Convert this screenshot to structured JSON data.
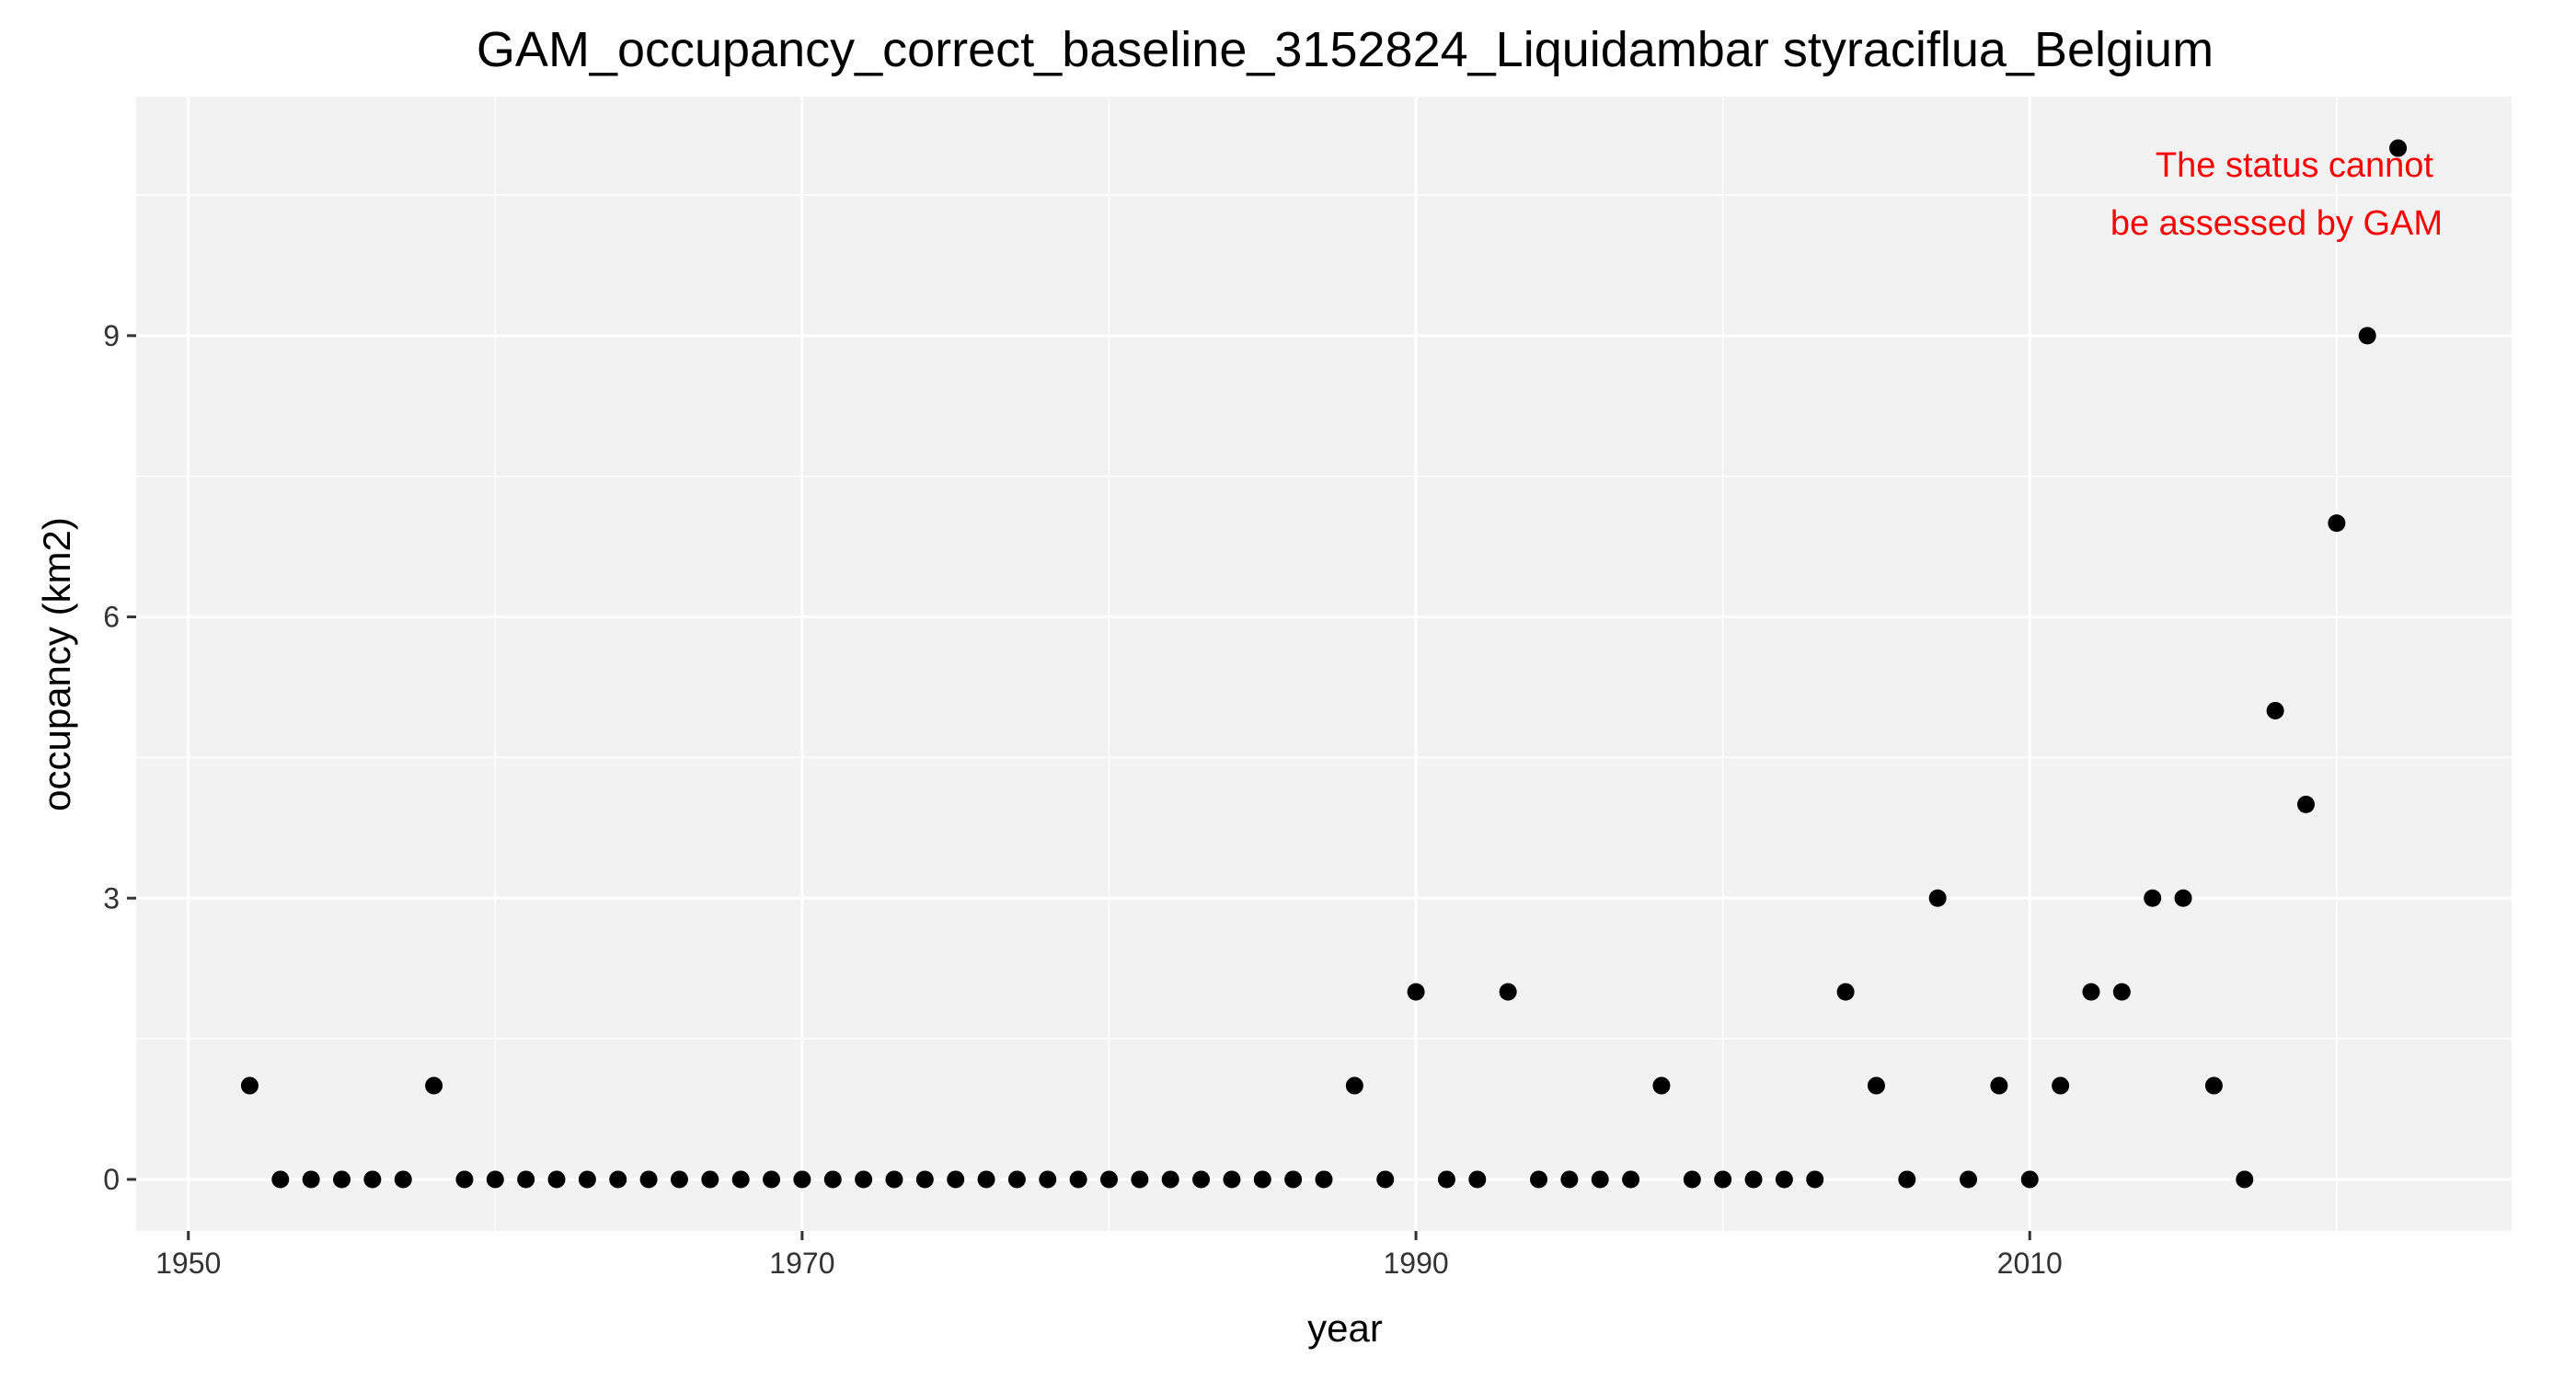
{
  "chart_data": {
    "type": "scatter",
    "title": "GAM_occupancy_correct_baseline_3152824_Liquidambar styraciflua_Belgium",
    "xlabel": "year",
    "ylabel": "occupancy (km2)",
    "xlim": [
      1948.3,
      2025.7
    ],
    "ylim": [
      -0.55,
      11.55
    ],
    "x_ticks": [
      1950,
      1970,
      1990,
      2010
    ],
    "y_ticks": [
      0,
      3,
      6,
      9
    ],
    "x_tick_labels": [
      "1950",
      "1970",
      "1990",
      "2010"
    ],
    "y_tick_labels": [
      "0",
      "3",
      "6",
      "9"
    ],
    "grid": true,
    "panel_background": "#f2f2f2",
    "point_color": "#000000",
    "annotation": {
      "line1": "The status cannot",
      "line2": "be assessed by GAM",
      "color": "#ff0000"
    },
    "x": [
      1952,
      1953,
      1954,
      1955,
      1956,
      1957,
      1958,
      1959,
      1960,
      1961,
      1962,
      1963,
      1964,
      1965,
      1966,
      1967,
      1968,
      1969,
      1970,
      1971,
      1972,
      1973,
      1974,
      1975,
      1976,
      1977,
      1978,
      1979,
      1980,
      1981,
      1982,
      1983,
      1984,
      1985,
      1986,
      1987,
      1988,
      1989,
      1990,
      1991,
      1992,
      1993,
      1994,
      1995,
      1996,
      1997,
      1998,
      1999,
      2000,
      2001,
      2002,
      2003,
      2004,
      2005,
      2006,
      2007,
      2008,
      2009,
      2010,
      2011,
      2012,
      2013,
      2014,
      2015,
      2016,
      2017,
      2018,
      2019,
      2020,
      2021,
      2022
    ],
    "y": [
      1,
      0,
      0,
      0,
      0,
      0,
      1,
      0,
      0,
      0,
      0,
      0,
      0,
      0,
      0,
      0,
      0,
      0,
      0,
      0,
      0,
      0,
      0,
      0,
      0,
      0,
      0,
      0,
      0,
      0,
      0,
      0,
      0,
      0,
      0,
      0,
      1,
      0,
      2,
      0,
      0,
      2,
      0,
      0,
      0,
      0,
      1,
      0,
      0,
      0,
      0,
      0,
      2,
      1,
      0,
      3,
      0,
      1,
      0,
      1,
      2,
      2,
      3,
      3,
      1,
      0,
      5,
      4,
      7,
      9,
      11
    ]
  }
}
